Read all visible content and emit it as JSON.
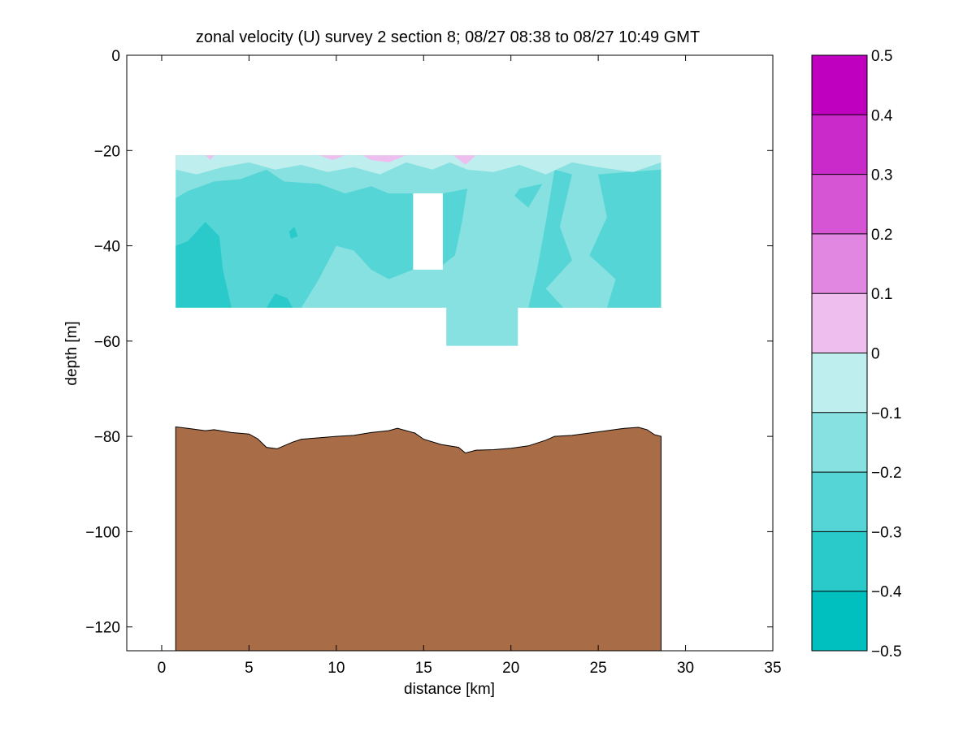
{
  "chart_data": {
    "type": "contour",
    "title": "zonal velocity (U) survey 2 section 8; 08/27 08:38 to 08/27 10:49 GMT",
    "xlabel": "distance [km]",
    "ylabel": "depth [m]",
    "xlim": [
      -2,
      35
    ],
    "ylim": [
      -125,
      0
    ],
    "xticks": [
      0,
      5,
      10,
      15,
      20,
      25,
      30,
      35
    ],
    "yticks": [
      -120,
      -100,
      -80,
      -60,
      -40,
      -20,
      0
    ],
    "grid": false,
    "colorbar": {
      "ticks": [
        -0.5,
        -0.4,
        -0.3,
        -0.2,
        -0.1,
        0,
        0.1,
        0.2,
        0.3,
        0.4,
        0.5
      ],
      "levels": [
        {
          "range": [
            -0.5,
            -0.4
          ],
          "color": "#00bfbf"
        },
        {
          "range": [
            -0.4,
            -0.3
          ],
          "color": "#2acaca"
        },
        {
          "range": [
            -0.3,
            -0.2
          ],
          "color": "#55d5d5"
        },
        {
          "range": [
            -0.2,
            -0.1
          ],
          "color": "#87e1e1"
        },
        {
          "range": [
            -0.1,
            0.0
          ],
          "color": "#bfeeee"
        },
        {
          "range": [
            0.0,
            0.1
          ],
          "color": "#eebfee"
        },
        {
          "range": [
            0.1,
            0.2
          ],
          "color": "#e187e1"
        },
        {
          "range": [
            0.2,
            0.3
          ],
          "color": "#d555d5"
        },
        {
          "range": [
            0.3,
            0.4
          ],
          "color": "#ca2aca"
        },
        {
          "range": [
            0.4,
            0.5
          ],
          "color": "#bf00bf"
        }
      ]
    },
    "data_region": {
      "x_range": [
        0.8,
        28.6
      ],
      "depth_range": [
        -53,
        -21
      ],
      "deep_profile": {
        "x_range": [
          16.3,
          20.4
        ],
        "bottom_depth": -61
      },
      "gap": {
        "x_range": [
          14.4,
          16.1
        ],
        "depth_range": [
          -45,
          -29
        ]
      }
    },
    "seafloor": {
      "color": "#a86c46",
      "x": [
        0.8,
        1.5,
        2.5,
        3.0,
        4.0,
        5.0,
        5.5,
        6.0,
        6.6,
        7.5,
        8.0,
        9.0,
        10.0,
        11.0,
        12.0,
        13.0,
        13.5,
        14.5,
        15.0,
        16.0,
        17.0,
        17.4,
        18.0,
        19.0,
        20.0,
        21.0,
        22.0,
        22.5,
        23.5,
        24.5,
        25.5,
        26.5,
        27.3,
        27.8,
        28.2,
        28.6
      ],
      "depth": [
        -78.0,
        -78.3,
        -78.8,
        -78.6,
        -79.2,
        -79.5,
        -80.5,
        -82.3,
        -82.6,
        -81.2,
        -80.6,
        -80.3,
        -80.0,
        -79.8,
        -79.2,
        -78.8,
        -78.3,
        -79.3,
        -80.6,
        -81.7,
        -82.3,
        -83.5,
        -82.9,
        -82.8,
        -82.5,
        -82.0,
        -80.8,
        -80.0,
        -79.8,
        -79.3,
        -78.8,
        -78.3,
        -78.1,
        -78.6,
        -79.6,
        -80.0
      ]
    },
    "contour_regions": [
      {
        "level": -0.3,
        "points": [
          [
            0.8,
            -30.0
          ],
          [
            1.5,
            -28.5
          ],
          [
            3.0,
            -26.5
          ],
          [
            4.5,
            -26.0
          ],
          [
            6.0,
            -24.0
          ],
          [
            7.0,
            -26.5
          ],
          [
            9.0,
            -27.0
          ],
          [
            10.5,
            -29.0
          ],
          [
            12.0,
            -27.5
          ],
          [
            13.0,
            -29.0
          ],
          [
            14.4,
            -29.0
          ],
          [
            14.4,
            -45.0
          ],
          [
            13.0,
            -47.0
          ],
          [
            12.0,
            -45.0
          ],
          [
            11.0,
            -41.0
          ],
          [
            10.0,
            -40.0
          ],
          [
            9.0,
            -47.0
          ],
          [
            8.0,
            -53.0
          ],
          [
            0.8,
            -53.0
          ]
        ]
      },
      {
        "level": -0.4,
        "points": [
          [
            0.8,
            -40.0
          ],
          [
            1.5,
            -39.0
          ],
          [
            2.5,
            -35.0
          ],
          [
            3.3,
            -38.0
          ],
          [
            3.5,
            -45.0
          ],
          [
            4.0,
            -53.0
          ],
          [
            0.8,
            -53.0
          ]
        ]
      },
      {
        "level": -0.4,
        "points": [
          [
            6.0,
            -53.0
          ],
          [
            6.5,
            -50.0
          ],
          [
            7.2,
            -51.0
          ],
          [
            7.5,
            -53.0
          ]
        ]
      },
      {
        "level": -0.4,
        "points": [
          [
            7.3,
            -37.0
          ],
          [
            7.6,
            -36.0
          ],
          [
            7.8,
            -38.0
          ],
          [
            7.4,
            -38.5
          ]
        ]
      },
      {
        "level": -0.3,
        "points": [
          [
            16.1,
            -29.0
          ],
          [
            17.5,
            -28.0
          ],
          [
            17.2,
            -35.0
          ],
          [
            16.8,
            -42.0
          ],
          [
            16.1,
            -44.0
          ]
        ]
      },
      {
        "level": -0.3,
        "points": [
          [
            20.5,
            -28.0
          ],
          [
            21.8,
            -27.0
          ],
          [
            21.0,
            -32.0
          ],
          [
            20.2,
            -29.5
          ]
        ]
      },
      {
        "level": -0.3,
        "points": [
          [
            22.5,
            -24.0
          ],
          [
            23.5,
            -25.0
          ],
          [
            22.8,
            -36.0
          ],
          [
            23.5,
            -43.0
          ],
          [
            22.0,
            -49.0
          ],
          [
            23.0,
            -53.0
          ],
          [
            21.0,
            -53.0
          ],
          [
            21.5,
            -45.0
          ],
          [
            22.0,
            -35.0
          ]
        ]
      },
      {
        "level": -0.3,
        "points": [
          [
            25.0,
            -25.0
          ],
          [
            28.6,
            -24.0
          ],
          [
            28.6,
            -53.0
          ],
          [
            25.5,
            -53.0
          ],
          [
            26.0,
            -47.0
          ],
          [
            24.5,
            -42.0
          ],
          [
            25.5,
            -34.0
          ]
        ]
      },
      {
        "level": -0.1,
        "points": [
          [
            0.8,
            -21.0
          ],
          [
            28.6,
            -21.0
          ],
          [
            28.6,
            -22.5
          ],
          [
            27.0,
            -24.5
          ],
          [
            25.0,
            -23.5
          ],
          [
            23.5,
            -22.5
          ],
          [
            22.0,
            -25.0
          ],
          [
            20.5,
            -23.0
          ],
          [
            19.0,
            -24.5
          ],
          [
            17.5,
            -24.0
          ],
          [
            16.5,
            -22.5
          ],
          [
            15.5,
            -24.0
          ],
          [
            14.0,
            -22.5
          ],
          [
            12.5,
            -25.0
          ],
          [
            11.0,
            -23.5
          ],
          [
            9.5,
            -24.5
          ],
          [
            8.0,
            -23.0
          ],
          [
            6.5,
            -24.0
          ],
          [
            5.0,
            -22.5
          ],
          [
            3.5,
            -23.5
          ],
          [
            2.0,
            -25.0
          ],
          [
            0.8,
            -24.0
          ]
        ]
      },
      {
        "level": 0.0,
        "points": [
          [
            2.5,
            -21.0
          ],
          [
            3.0,
            -21.0
          ],
          [
            2.8,
            -22.0
          ]
        ]
      },
      {
        "level": 0.0,
        "points": [
          [
            9.0,
            -21.0
          ],
          [
            10.5,
            -21.0
          ],
          [
            9.8,
            -22.0
          ]
        ]
      },
      {
        "level": 0.0,
        "points": [
          [
            11.5,
            -21.0
          ],
          [
            14.0,
            -21.0
          ],
          [
            13.0,
            -22.5
          ],
          [
            12.0,
            -22.0
          ]
        ]
      },
      {
        "level": 0.0,
        "points": [
          [
            16.7,
            -21.0
          ],
          [
            18.0,
            -21.0
          ],
          [
            17.4,
            -23.0
          ]
        ]
      }
    ]
  }
}
